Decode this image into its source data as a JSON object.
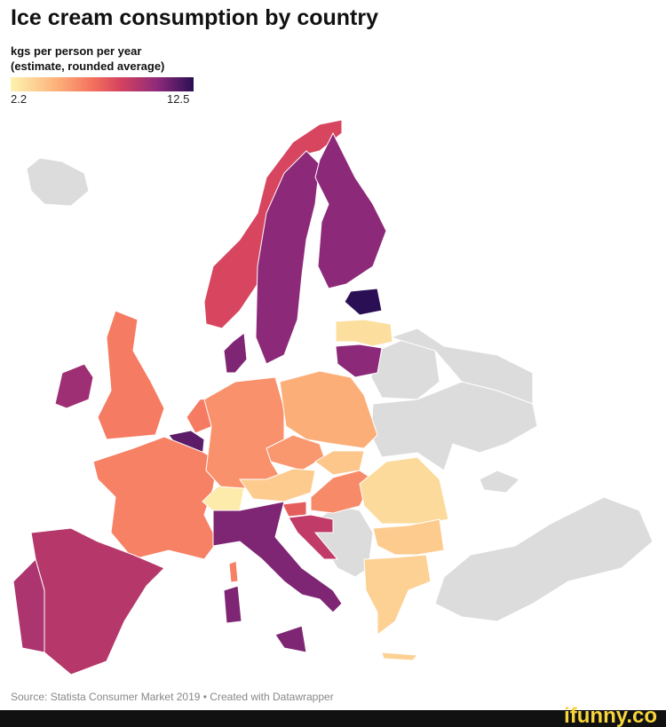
{
  "header": {
    "title": "Ice cream consumption by country",
    "subtitle_1": "kgs per person per year",
    "subtitle_2": "(estimate, rounded average)"
  },
  "legend": {
    "min": 2.2,
    "max": 12.5
  },
  "map": {
    "regions": [
      8.3,
      10.5,
      10.5,
      12.5,
      3.0,
      10.5,
      10.8,
      6.5,
      10.0,
      6.5,
      11.5,
      6.3,
      5.8,
      4.9,
      5.6,
      4.0,
      3.8,
      6.0,
      2.5,
      7.5,
      9.0,
      10.8,
      9.3,
      9.6,
      3.2,
      3.8,
      3.6
    ]
  },
  "footer": {
    "source": "Source: Statista Consumer Market 2019 • Created with Datawrapper",
    "watermark": "ifunny.co"
  }
}
